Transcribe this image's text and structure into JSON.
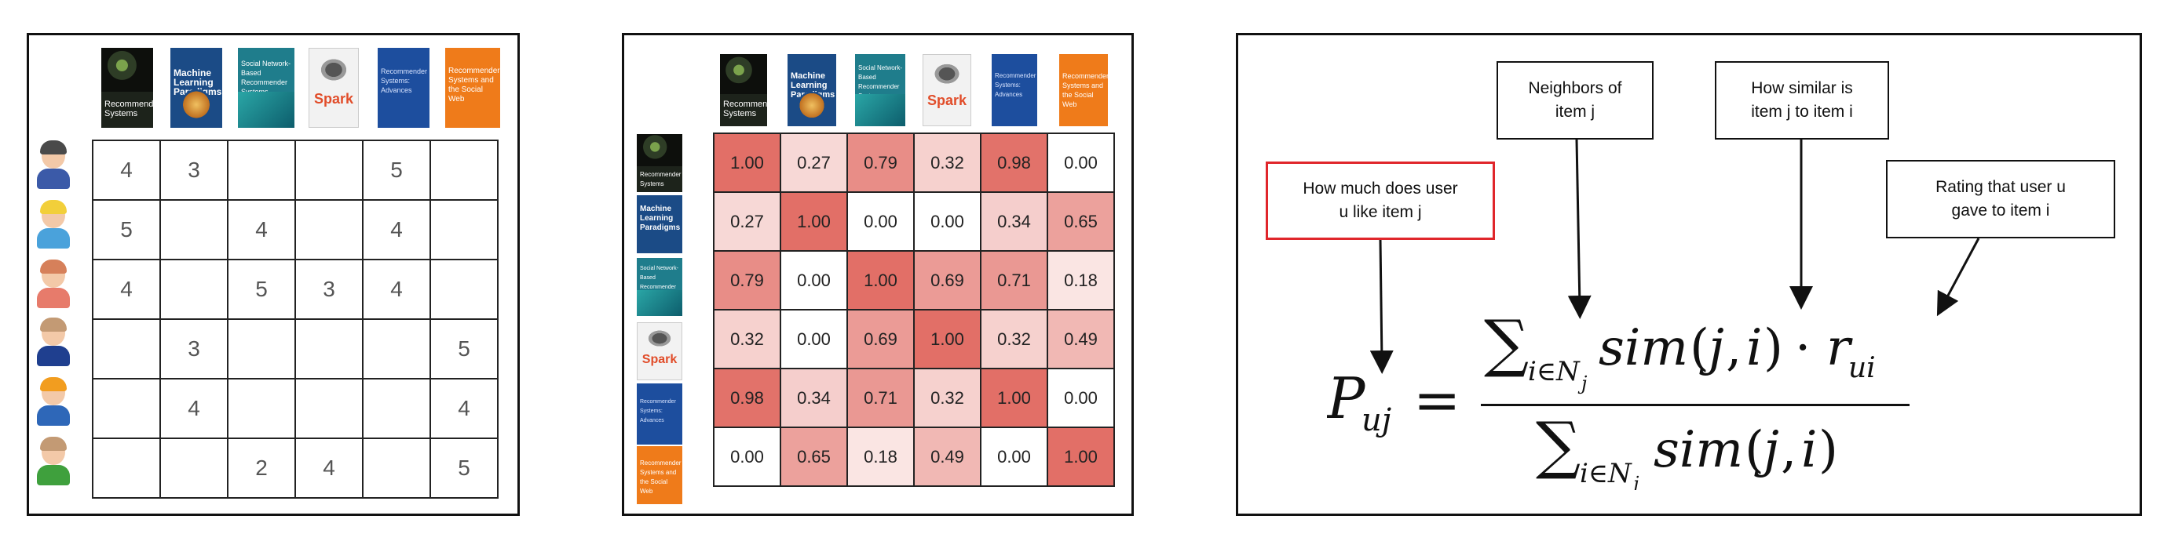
{
  "ratings": {
    "rows": [
      [
        "4",
        "3",
        "",
        "",
        "5",
        ""
      ],
      [
        "5",
        "",
        "4",
        "",
        "4",
        ""
      ],
      [
        "4",
        "",
        "5",
        "3",
        "4",
        ""
      ],
      [
        "",
        "3",
        "",
        "",
        "",
        "5"
      ],
      [
        "",
        "4",
        "",
        "",
        "",
        "4"
      ],
      [
        "",
        "",
        "2",
        "4",
        "",
        "5"
      ]
    ]
  },
  "similarity": {
    "rows": [
      [
        "1.00",
        "0.27",
        "0.79",
        "0.32",
        "0.98",
        "0.00"
      ],
      [
        "0.27",
        "1.00",
        "0.00",
        "0.00",
        "0.34",
        "0.65"
      ],
      [
        "0.79",
        "0.00",
        "1.00",
        "0.69",
        "0.71",
        "0.18"
      ],
      [
        "0.32",
        "0.00",
        "0.69",
        "1.00",
        "0.32",
        "0.49"
      ],
      [
        "0.98",
        "0.34",
        "0.71",
        "0.32",
        "1.00",
        "0.00"
      ],
      [
        "0.00",
        "0.65",
        "0.18",
        "0.49",
        "0.00",
        "1.00"
      ]
    ],
    "heat_color": "#e0675f"
  },
  "books": [
    {
      "title": "Recommender Systems"
    },
    {
      "title": "Machine Learning Paradigms"
    },
    {
      "title": "Social Network-Based Recommender Systems"
    },
    {
      "title": "Spark"
    },
    {
      "title": "Recommender Systems: Advances"
    },
    {
      "title": "Recommender Systems and the Social Web"
    }
  ],
  "annotations": {
    "user_likes": "How much does user\nu like item j",
    "neighbors": "Neighbors of\nitem j",
    "similarity": "How similar is\nitem j to item i",
    "rating": "Rating that user u\ngave to item i"
  },
  "colors": {
    "highlight_border": "#e0262b",
    "frame": "#111111"
  }
}
